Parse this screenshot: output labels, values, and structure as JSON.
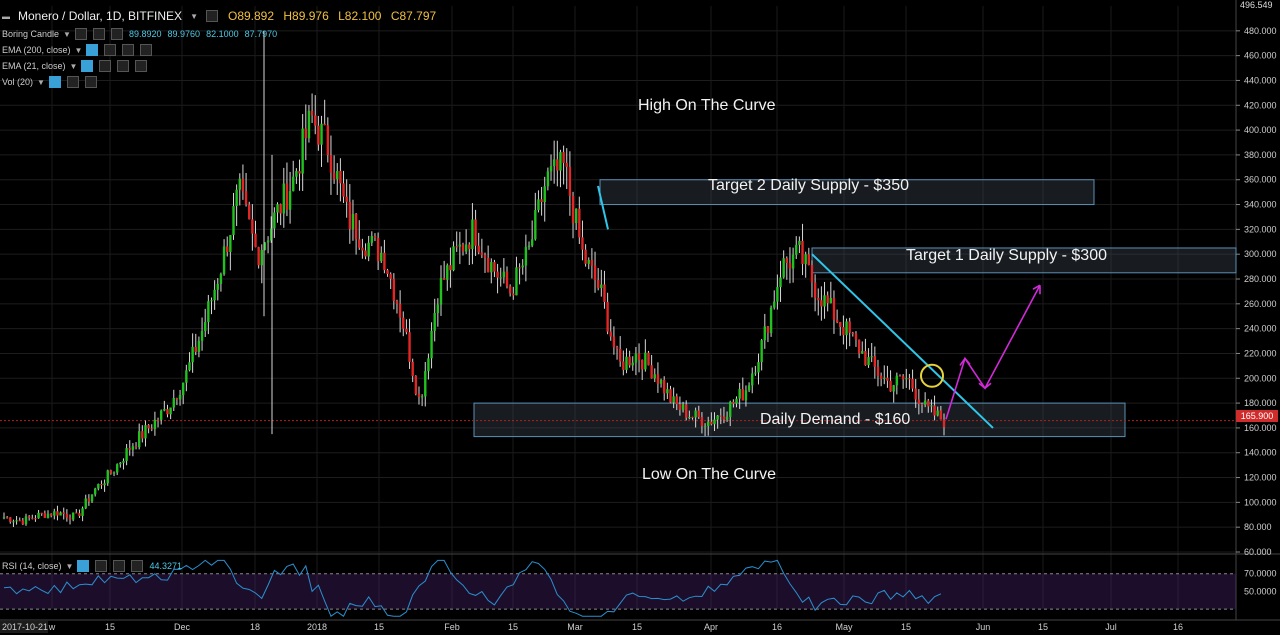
{
  "header": {
    "symbol": "Monero / Dollar, 1D, BITFINEX",
    "open": "O89.892",
    "high": "H89.976",
    "low": "L82.100",
    "close": "C87.797"
  },
  "indicators": [
    {
      "label": "Boring Candle",
      "values": [
        "89.8920",
        "89.9760",
        "82.1000",
        "87.7970"
      ]
    },
    {
      "label": "EMA (200, close)",
      "values": []
    },
    {
      "label": "EMA (21, close)",
      "values": []
    },
    {
      "label": "Vol (20)",
      "values": []
    }
  ],
  "rsi": {
    "label": "RSI (14, close)",
    "value": "44.3271",
    "ticks": [
      "70.0000",
      "50.0000"
    ]
  },
  "price_tag": "165.900",
  "top_tag": "496.549",
  "annotations": {
    "high_curve": "High On The Curve",
    "low_curve": "Low On The Curve",
    "target2": "Target 2 Daily Supply - $350",
    "target1": "Target 1 Daily Supply - $300",
    "demand": "Daily Demand - $160"
  },
  "colors": {
    "up": "#21c21f",
    "down": "#e32626",
    "wick": "#d8d8d8",
    "trend": "#2fc6ea",
    "forecast": "#d12ad8",
    "rsi": "#2a8fd0"
  },
  "chart_data": {
    "type": "candlestick",
    "title": "Monero / Dollar, 1D, BITFINEX",
    "ylim": [
      60,
      500
    ],
    "y_ticks": [
      60,
      80,
      100,
      120,
      140,
      160,
      180,
      200,
      220,
      240,
      260,
      280,
      300,
      320,
      340,
      360,
      380,
      400,
      420,
      440,
      460,
      480
    ],
    "x_ticks": [
      "2017-10-21",
      "w",
      "15",
      "Dec",
      "18",
      "2018",
      "15",
      "Feb",
      "15",
      "Mar",
      "15",
      "Apr",
      "16",
      "May",
      "15",
      "Jun",
      "15",
      "Jul",
      "16"
    ],
    "zones": [
      {
        "label": "Target 2 Daily Supply - $350",
        "low": 340,
        "high": 360
      },
      {
        "label": "Target 1 Daily Supply - $300",
        "low": 285,
        "high": 305
      },
      {
        "label": "Daily Demand - $160",
        "low": 153,
        "high": 180
      }
    ],
    "key_path": [
      88,
      85,
      90,
      92,
      88,
      110,
      125,
      145,
      160,
      175,
      200,
      240,
      290,
      350,
      300,
      330,
      360,
      410,
      385,
      330,
      310,
      300,
      250,
      180,
      270,
      300,
      320,
      290,
      270,
      300,
      360,
      370,
      300,
      270,
      210,
      220,
      205,
      180,
      170,
      165,
      175,
      190,
      230,
      290,
      300,
      270,
      250,
      230,
      210,
      195,
      200,
      175,
      166
    ],
    "last_price": 165.9
  }
}
